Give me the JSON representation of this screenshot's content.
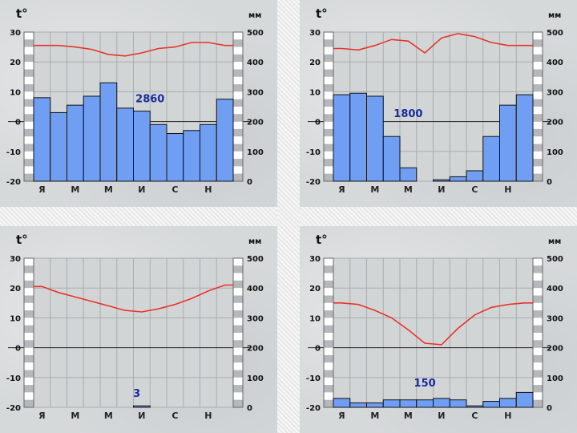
{
  "chart_data": [
    {
      "type": "bar",
      "temp_unit": "t°",
      "precip_unit": "мм",
      "temp_ticks": [
        "30",
        "20",
        "10",
        "0",
        "-10",
        "-20"
      ],
      "precip_ticks": [
        "500",
        "400",
        "300",
        "200",
        "100",
        "0"
      ],
      "month_labels": [
        "Я",
        "М",
        "М",
        "И",
        "С",
        "Н"
      ],
      "temp_range": [
        -20,
        30
      ],
      "precip_range": [
        0,
        500
      ],
      "annotation": "2860",
      "precip_bar_tops": [
        8,
        3,
        5.5,
        8.5,
        13,
        4.5,
        3.5,
        -1,
        -4,
        -3,
        -1,
        7.5
      ],
      "temperature": [
        25.5,
        25.5,
        25,
        24.2,
        22.5,
        22,
        23,
        24.5,
        25,
        26.5,
        26.5,
        25.5
      ],
      "grid": true
    },
    {
      "type": "bar",
      "temp_unit": "t°",
      "precip_unit": "мм",
      "temp_ticks": [
        "30",
        "20",
        "10",
        "0",
        "-10",
        "-20"
      ],
      "precip_ticks": [
        "500",
        "400",
        "300",
        "200",
        "100",
        "0"
      ],
      "month_labels": [
        "Я",
        "М",
        "М",
        "И",
        "С",
        "Н"
      ],
      "temp_range": [
        -20,
        30
      ],
      "precip_range": [
        0,
        500
      ],
      "annotation": "1800",
      "precip_bar_tops": [
        9,
        9.5,
        8.5,
        -5,
        -15.5,
        null,
        -19.5,
        -18.5,
        -16.5,
        -5,
        5.5,
        9
      ],
      "temperature": [
        24.5,
        24,
        25.5,
        27.5,
        27,
        23,
        28,
        29.5,
        28.5,
        26.5,
        25.5,
        25.5
      ],
      "grid": true
    },
    {
      "type": "bar",
      "temp_unit": "t°",
      "precip_unit": "мм",
      "temp_ticks": [
        "30",
        "20",
        "10",
        "0",
        "-10",
        "-20"
      ],
      "precip_ticks": [
        "500",
        "400",
        "300",
        "200",
        "100",
        "0"
      ],
      "month_labels": [
        "Я",
        "М",
        "М",
        "И",
        "С",
        "Н"
      ],
      "temp_range": [
        -20,
        30
      ],
      "precip_range": [
        0,
        500
      ],
      "annotation": "3",
      "precip_bar_tops": [
        null,
        null,
        null,
        null,
        null,
        null,
        -19.5,
        null,
        null,
        null,
        null,
        null
      ],
      "temperature": [
        20.5,
        18.5,
        17,
        15.5,
        14,
        12.5,
        12,
        13,
        14.5,
        16.5,
        19,
        21
      ],
      "grid": true
    },
    {
      "type": "bar",
      "temp_unit": "t°",
      "precip_unit": "мм",
      "temp_ticks": [
        "30",
        "20",
        "10",
        "0",
        "-10",
        "-20"
      ],
      "precip_ticks": [
        "500",
        "400",
        "300",
        "200",
        "100",
        "0"
      ],
      "month_labels": [
        "Я",
        "М",
        "М",
        "И",
        "С",
        "Н"
      ],
      "temp_range": [
        -20,
        30
      ],
      "precip_range": [
        0,
        500
      ],
      "annotation": "150",
      "precip_bar_tops": [
        -17,
        -18.5,
        -18.5,
        -17.5,
        -17.5,
        -17.5,
        -17,
        -17.5,
        -19.5,
        -18,
        -17,
        -15
      ],
      "temperature": [
        15,
        14.5,
        12.5,
        10,
        6,
        1.5,
        1,
        6.5,
        11,
        13.5,
        14.5,
        15
      ],
      "grid": true
    }
  ]
}
